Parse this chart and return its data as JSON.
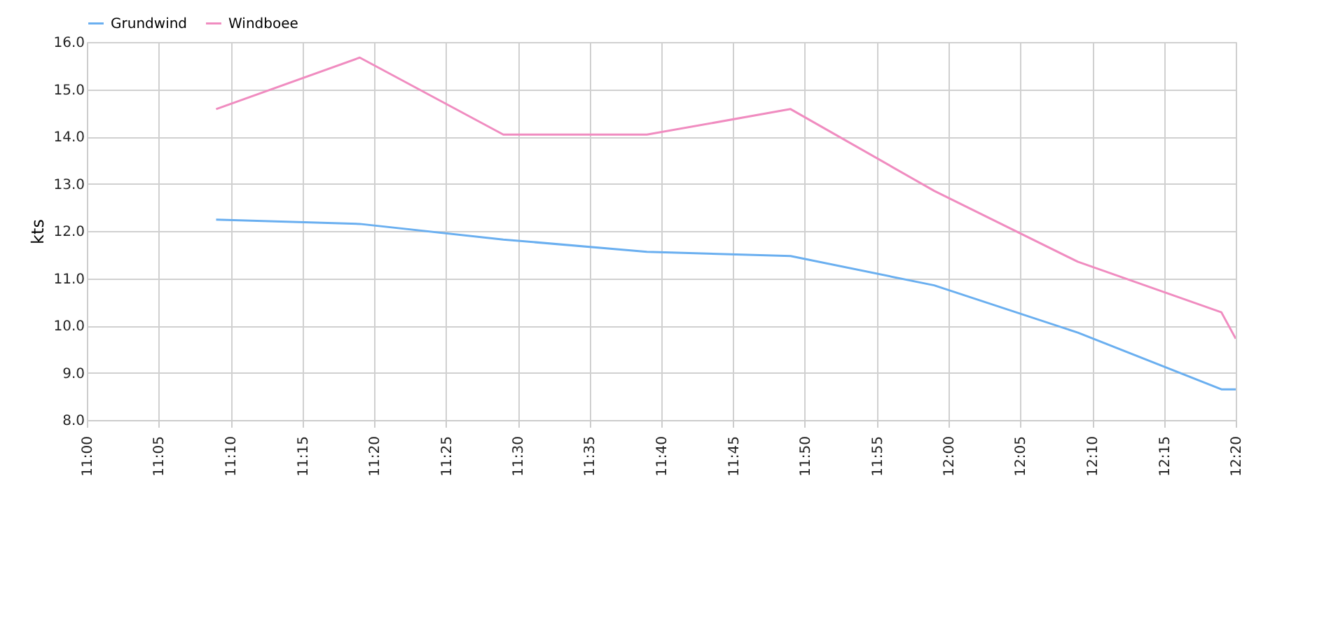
{
  "chart_data": {
    "type": "line",
    "ylabel": "kts",
    "legend": "top",
    "grid": true,
    "line_style": "solid",
    "marker": "none",
    "xlim": [
      11,
      12.333333
    ],
    "ylim": [
      8,
      16
    ],
    "xticks": [
      {
        "value": 11,
        "label": "11:00"
      },
      {
        "value": 11.083333,
        "label": "11:05"
      },
      {
        "value": 11.166667,
        "label": "11:10"
      },
      {
        "value": 11.25,
        "label": "11:15"
      },
      {
        "value": 11.333333,
        "label": "11:20"
      },
      {
        "value": 11.416667,
        "label": "11:25"
      },
      {
        "value": 11.5,
        "label": "11:30"
      },
      {
        "value": 11.583333,
        "label": "11:35"
      },
      {
        "value": 11.666667,
        "label": "11:40"
      },
      {
        "value": 11.75,
        "label": "11:45"
      },
      {
        "value": 11.833333,
        "label": "11:50"
      },
      {
        "value": 11.916667,
        "label": "11:55"
      },
      {
        "value": 12,
        "label": "12:00"
      },
      {
        "value": 12.083333,
        "label": "12:05"
      },
      {
        "value": 12.166667,
        "label": "12:10"
      },
      {
        "value": 12.25,
        "label": "12:15"
      },
      {
        "value": 12.333333,
        "label": "12:20"
      }
    ],
    "yticks": [
      {
        "value": 8,
        "label": "8.0"
      },
      {
        "value": 9,
        "label": "9.0"
      },
      {
        "value": 10,
        "label": "10.0"
      },
      {
        "value": 11,
        "label": "11.0"
      },
      {
        "value": 12,
        "label": "12.0"
      },
      {
        "value": 13,
        "label": "13.0"
      },
      {
        "value": 14,
        "label": "14.0"
      },
      {
        "value": 15,
        "label": "15.0"
      },
      {
        "value": 16,
        "label": "16.0"
      }
    ],
    "x": [
      11.15,
      11.316667,
      11.483333,
      11.65,
      11.816667,
      11.983333,
      12.15,
      12.316667,
      12.333333
    ],
    "series": [
      {
        "name": "Grundwind",
        "color": "#6aaff0",
        "values": [
          12.24,
          12.15,
          11.82,
          11.56,
          11.47,
          10.85,
          9.85,
          8.65,
          8.65
        ]
      },
      {
        "name": "Windboee",
        "color": "#f08cc0",
        "values": [
          14.58,
          15.67,
          14.04,
          14.04,
          14.58,
          12.85,
          11.35,
          10.28,
          9.72
        ]
      }
    ]
  }
}
